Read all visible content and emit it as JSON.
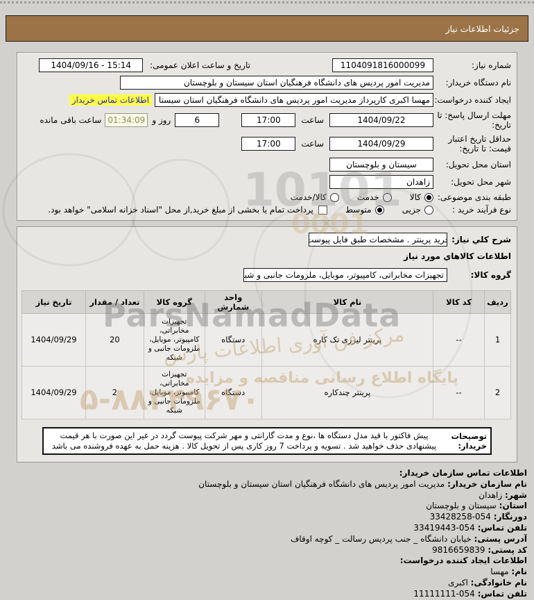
{
  "ui_colors": {
    "title_bar": "#9b7347",
    "page_background": "#d3d1ce",
    "panel_background": "#e7e6e3",
    "link_text": "#2323cf",
    "link_highlight": "#ffff42",
    "timer_background": "#fbfae6",
    "timer_text": "#8b8b63"
  },
  "header": {
    "title": "جزئیات اطلاعات نیاز"
  },
  "info": {
    "need_no_label": "شماره نیاز:",
    "need_no": "1104091816000099",
    "announce_label": "تاریخ و ساعت اعلان عمومی:",
    "announce_value": "1404/09/16 - 15:14",
    "buyer_org_label": "نام دستگاه خریدار:",
    "buyer_org": "مدیریت امور پردیس های دانشگاه فرهنگیان استان سیستان و بلوچستان",
    "creator_label": "ایجاد کننده درخواست:",
    "creator": "مهسا اکبری کارپرداز مدیریت امور پردیس های دانشگاه فرهنگیان استان سیستا",
    "contact_link": "اطلاعات تماس خریدار",
    "deadline_label": "مهلت ارسال پاسخ: تا تاریخ:",
    "deadline_date": "1404/09/22",
    "hour_label": "ساعت",
    "deadline_time": "17:00",
    "days_left": "6",
    "days_label": "روز و",
    "time_left": "01:34:09",
    "remain_label": "ساعت باقی مانده",
    "validity_label": "حداقل تاریخ اعتبار قیمت: تا تاریخ:",
    "validity_date": "1404/09/29",
    "validity_time": "17:00",
    "province_label": "استان محل تحویل:",
    "province": "سیستان و بلوچستان",
    "city_label": "شهر محل تحویل:",
    "city": "زاهدان",
    "category_label": "طبقه بندی موضوعی:",
    "category_options": [
      {
        "label": "کالا",
        "selected": true
      },
      {
        "label": "خدمت",
        "selected": false
      },
      {
        "label": "کالا/خدمت",
        "selected": false
      }
    ],
    "process_label": "نوع فرآیند خرید :",
    "process_options": [
      {
        "label": "جزیی",
        "selected": false
      },
      {
        "label": "متوسط",
        "selected": true
      }
    ],
    "treasury_note": "پرداخت تمام یا بخشی از مبلغ خرید,از محل \"اسناد خزانه اسلامی\" خواهد بود."
  },
  "need": {
    "desc_label": "شرح کلي نیاز:",
    "desc": "خرید پرینتر . مشخصات طبق فایل پیوست",
    "items_heading": "اطلاعات کالاهاي مورد نیاز",
    "group_label": "گروه کالا:",
    "group": "تجهیزات مخابراتی، کامپیوتر، موبایل، ملزومات جانبی و شبکه"
  },
  "table": {
    "headers": [
      "ردیف",
      "کد کالا",
      "نام کالا",
      "واحد شمارش",
      "گروه کالا",
      "تعداد / مقدار",
      "تاریخ نیاز"
    ],
    "rows": [
      [
        "1",
        "--",
        "پرینتر لیزری تک کاره",
        "دستگاه",
        "تجهیزات مخابراتی، کامپیوتر، موبایل، ملزومات جانبی و شبکه",
        "20",
        "1404/09/29"
      ],
      [
        "2",
        "--",
        "پرینتر چندکاره",
        "دستگاه",
        "تجهیزات مخابراتی، کامپیوتر، موبایل، ملزومات جانبی و شبکه",
        "2",
        "1404/09/29"
      ]
    ]
  },
  "remarks": {
    "label": "توضیحات خریدار:",
    "text": "پیش فاکتور با قید مدل دستگاه ها ،نوع و مدت گارانتی و مهر شرکت پیوست گردد در غیر این صورت با هر قیمت پیشنهادی حذف خواهید شد . تسویه و پرداخت 7 روز کاری پس از تحویل کالا . هزینه حمل به عهده فروشنده می باشد"
  },
  "contact": {
    "heading": "اطلاعات تماس سازمان خریدار:",
    "rows": [
      {
        "label": "نام سازمان خریدار:",
        "value": "مدیریت امور پردیس های دانشگاه فرهنگیان استان سیستان و بلوچستان"
      },
      {
        "label": "شهر:",
        "value": "زاهدان"
      },
      {
        "label": "استان:",
        "value": "سیستان و بلوچستان"
      },
      {
        "label": "دورنگار:",
        "value": "33428258-054",
        "ltr": true
      },
      {
        "label": "تلفن تماس:",
        "value": "33419443-054",
        "ltr": true
      },
      {
        "label": "آدرس پستی:",
        "value": "خیابان دانشگاه _ جنب پردیس رسالت _ کوچه اوقاف"
      },
      {
        "label": "کد پستی:",
        "value": "9816659839",
        "ltr": true
      },
      {
        "label": "اطلاعات ایجاد کننده درخواست:",
        "value": "",
        "heading": true
      },
      {
        "label": "نام:",
        "value": "مهسا"
      },
      {
        "label": "نام خانوادگی:",
        "value": "اکبری"
      },
      {
        "label": "تلفن تماس:",
        "value": "11111111-054",
        "ltr": true
      }
    ]
  },
  "watermark": {
    "brand": "ParsNamadData",
    "digits_top": "10101",
    "digits_mid": "0001",
    "line1": "مرکز فن آوری اطلاعات پارس",
    "line2": "پایگاه اطلاع رسانی مناقصه و مزایده",
    "phone": "۵-۸۸۳۴۹۶۷۰"
  }
}
